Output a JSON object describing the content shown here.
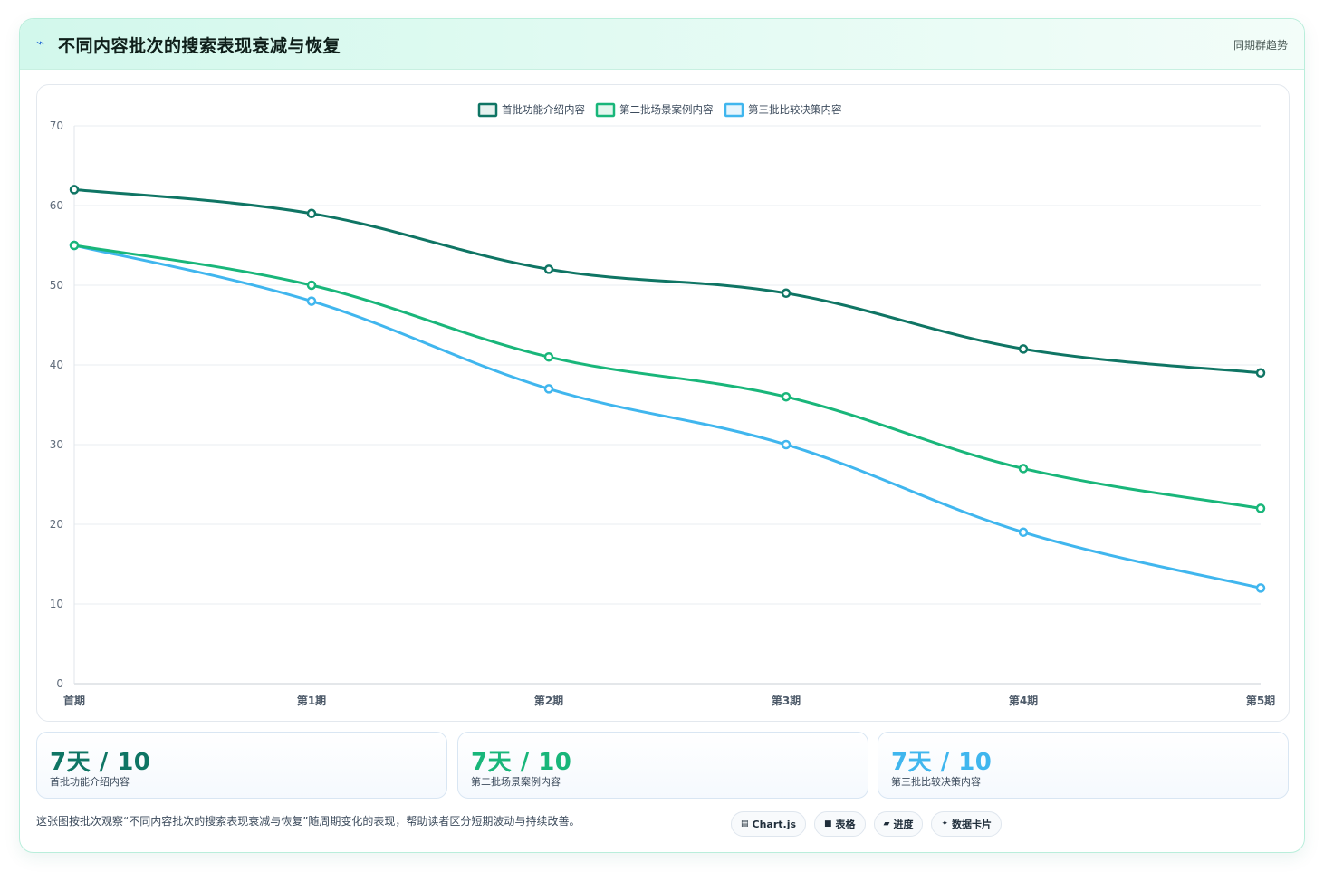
{
  "header": {
    "title": "不同内容批次的搜索表现衰减与恢复",
    "subtitle": "同期群趋势",
    "icon": "bolt-icon"
  },
  "colors": {
    "series1": "#0f7564",
    "series2": "#19b67a",
    "series3": "#40b6ee"
  },
  "chart_data": {
    "type": "line",
    "categories": [
      "首期",
      "第1期",
      "第2期",
      "第3期",
      "第4期",
      "第5期"
    ],
    "ylim": [
      0,
      70
    ],
    "yticks": [
      "0",
      "10",
      "20",
      "30",
      "40",
      "50",
      "60",
      "70"
    ],
    "legend_position": "top",
    "grid": true,
    "series": [
      {
        "name": "首批功能介绍内容",
        "values": [
          62,
          59,
          52,
          49,
          42,
          39
        ]
      },
      {
        "name": "第二批场景案例内容",
        "values": [
          55,
          50,
          41,
          36,
          27,
          22
        ]
      },
      {
        "name": "第三批比较决策内容",
        "values": [
          55,
          48,
          37,
          30,
          19,
          12
        ]
      }
    ]
  },
  "stats": [
    {
      "value": "7天 / 10",
      "label": "首批功能介绍内容"
    },
    {
      "value": "7天 / 10",
      "label": "第二批场景案例内容"
    },
    {
      "value": "7天 / 10",
      "label": "第三批比较决策内容"
    }
  ],
  "description": "这张图按批次观察“不同内容批次的搜索表现衰减与恢复”随周期变化的表现，帮助读者区分短期波动与持续改善。",
  "chips": [
    {
      "icon": "chart-icon",
      "label": "Chart.js"
    },
    {
      "icon": "table-icon",
      "label": "表格"
    },
    {
      "icon": "progress-icon",
      "label": "进度"
    },
    {
      "icon": "sparkle-icon",
      "label": "数据卡片"
    }
  ]
}
